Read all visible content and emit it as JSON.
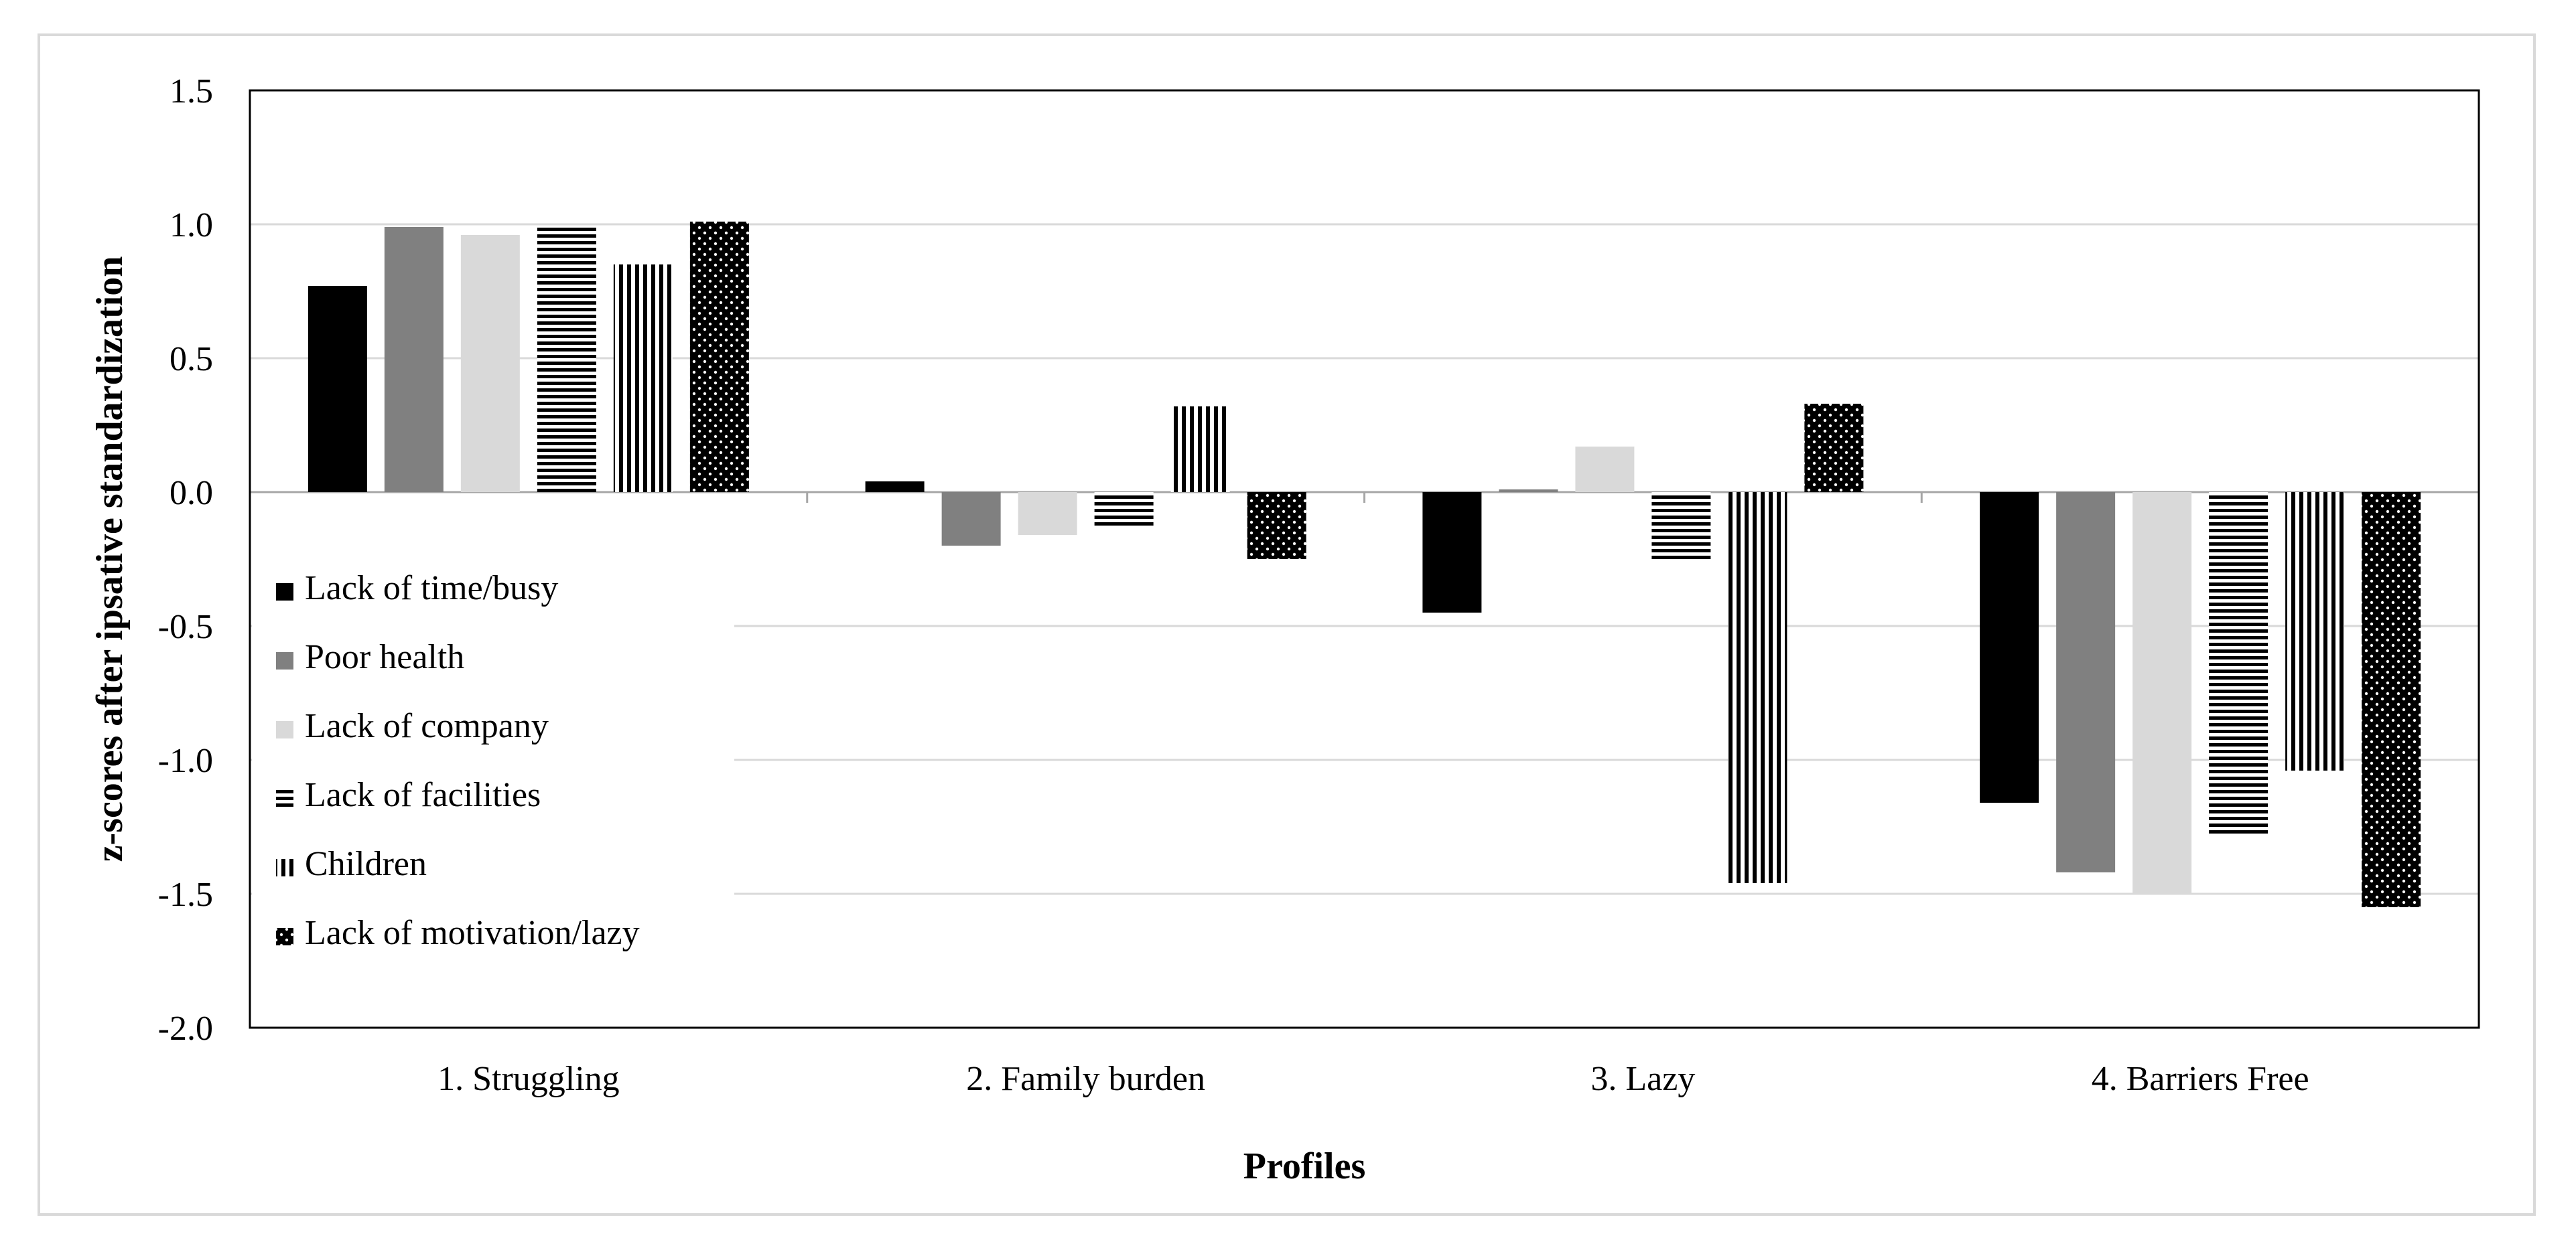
{
  "chart_data": {
    "type": "bar",
    "title": "",
    "xlabel": "Profiles",
    "ylabel": "z-scores  after ipsative standardization",
    "ylim": [
      -2.0,
      1.5
    ],
    "yticks": [
      "1.5",
      "1.0",
      "0.5",
      "0.0",
      "-0.5",
      "-1.0",
      "-1.5",
      "-2.0"
    ],
    "ytick_values": [
      1.5,
      1.0,
      0.5,
      0.0,
      -0.5,
      -1.0,
      -1.5,
      -2.0
    ],
    "categories": [
      "1. Struggling",
      "2. Family burden",
      "3. Lazy",
      "4. Barriers Free"
    ],
    "grid": "horizontal",
    "legend_position": "left",
    "series": [
      {
        "name": "Lack of time/busy",
        "pattern": "solid-black",
        "color": "#000000",
        "values": [
          0.77,
          0.04,
          -0.45,
          -1.16
        ]
      },
      {
        "name": "Poor health",
        "pattern": "solid-gray",
        "color": "#808080",
        "values": [
          0.99,
          -0.2,
          0.01,
          -1.42
        ]
      },
      {
        "name": "Lack of company",
        "pattern": "solid-lightgray",
        "color": "#d9d9d9",
        "values": [
          0.96,
          -0.16,
          0.17,
          -1.5
        ]
      },
      {
        "name": "Lack of facilities",
        "pattern": "horizontal-lines",
        "color": "#000000",
        "values": [
          0.99,
          -0.13,
          -0.26,
          -1.28
        ]
      },
      {
        "name": "Children",
        "pattern": "vertical-lines",
        "color": "#000000",
        "values": [
          0.85,
          0.32,
          -1.46,
          -1.04
        ]
      },
      {
        "name": "Lack of motivation/lazy",
        "pattern": "dotted-black",
        "color": "#000000",
        "values": [
          1.01,
          -0.25,
          0.33,
          -1.55
        ]
      }
    ]
  }
}
